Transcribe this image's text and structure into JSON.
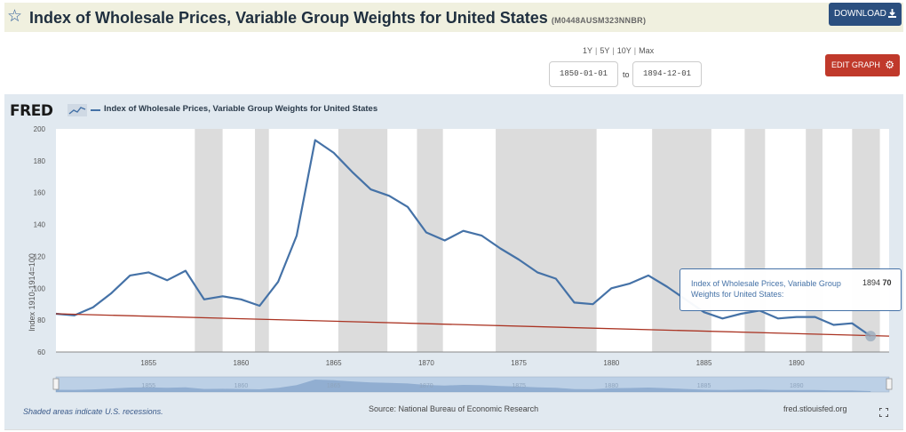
{
  "header": {
    "title": "Index of Wholesale Prices, Variable Group Weights for United States",
    "series_code": "(M0448AUSM323NNBR)",
    "download_label": "DOWNLOAD"
  },
  "controls": {
    "range_options": [
      "1Y",
      "5Y",
      "10Y",
      "Max"
    ],
    "start_date": "1850-01-01",
    "to_label": "to",
    "end_date": "1894-12-01",
    "edit_label": "EDIT GRAPH"
  },
  "panel": {
    "logo": "FRED",
    "legend_label": "Index of Wholesale Prices, Variable Group Weights for United States",
    "recession_note": "Shaded areas indicate U.S. recessions.",
    "source": "Source: National Bureau of Economic Research",
    "site": "fred.stlouisfed.org"
  },
  "tooltip": {
    "name": "Index of Wholesale Prices, Variable Group Weights for United States:",
    "date": "1894",
    "value": "70"
  },
  "colors": {
    "series": "#4572a7",
    "trend": "#aa3322",
    "recession": "#dcdcdc",
    "panel_bg": "#e1e9f0",
    "download_bg": "#2b4f7f",
    "edit_bg": "#c0392b"
  },
  "chart_data": {
    "type": "line",
    "title": "",
    "xlabel": "",
    "ylabel": "Index 1910-1914=100",
    "xlim": [
      1850.0,
      1895.0
    ],
    "ylim": [
      60,
      200
    ],
    "y_ticks": [
      60,
      80,
      100,
      120,
      140,
      160,
      180,
      200
    ],
    "x_ticks": [
      1855,
      1860,
      1865,
      1870,
      1875,
      1880,
      1885,
      1890
    ],
    "grid": "vertical-off horizontal-off",
    "legend_position": "top-left",
    "recessions": [
      [
        1857.5,
        1859.0
      ],
      [
        1860.75,
        1861.5
      ],
      [
        1865.25,
        1867.9
      ],
      [
        1869.5,
        1870.9
      ],
      [
        1873.75,
        1879.2
      ],
      [
        1882.2,
        1885.4
      ],
      [
        1887.2,
        1888.3
      ],
      [
        1890.5,
        1891.4
      ],
      [
        1893.0,
        1894.5
      ]
    ],
    "series": [
      {
        "name": "Index of Wholesale Prices, Variable Group Weights for United States",
        "x": [
          1850,
          1851,
          1852,
          1853,
          1854,
          1855,
          1856,
          1857,
          1858,
          1859,
          1860,
          1861,
          1862,
          1863,
          1864,
          1865,
          1866,
          1867,
          1868,
          1869,
          1870,
          1871,
          1872,
          1873,
          1874,
          1875,
          1876,
          1877,
          1878,
          1879,
          1880,
          1881,
          1882,
          1883,
          1884,
          1885,
          1886,
          1887,
          1888,
          1889,
          1890,
          1891,
          1892,
          1893,
          1894
        ],
        "y": [
          84,
          83,
          88,
          97,
          108,
          110,
          105,
          111,
          93,
          95,
          93,
          89,
          104,
          133,
          193,
          185,
          173,
          162,
          158,
          151,
          135,
          130,
          136,
          133,
          125,
          118,
          110,
          106,
          91,
          90,
          100,
          103,
          108,
          101,
          93,
          85,
          81,
          84,
          86,
          81,
          82,
          82,
          77,
          78,
          70
        ]
      },
      {
        "name": "",
        "x": [
          1850,
          1895
        ],
        "y": [
          84,
          70
        ]
      }
    ]
  }
}
